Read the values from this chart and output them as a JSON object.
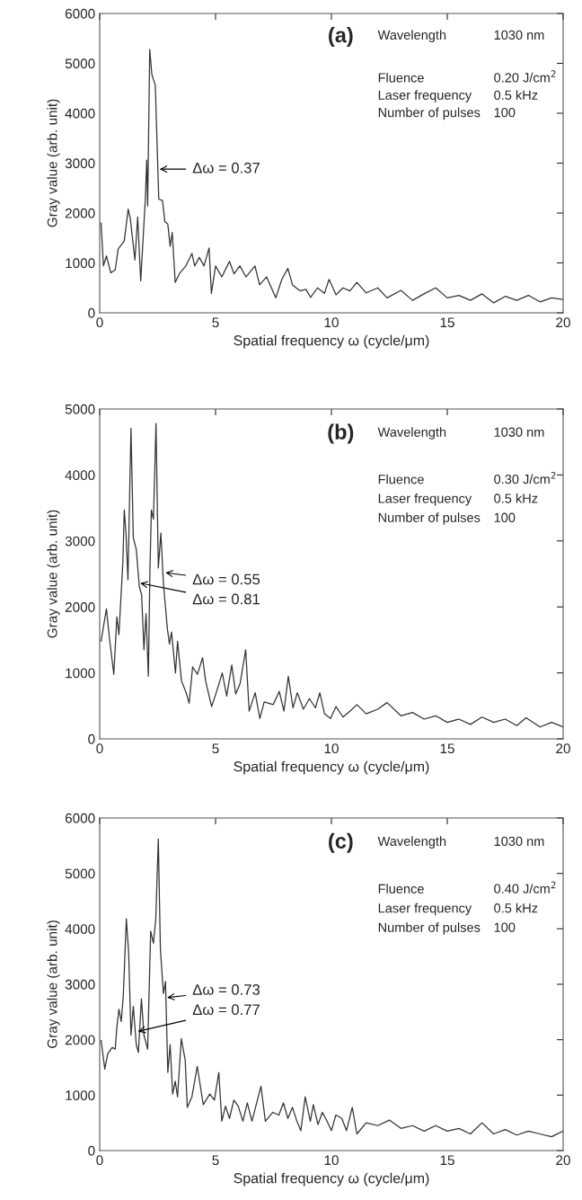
{
  "chart_data": [
    {
      "type": "line",
      "title": "(a)",
      "xlabel": "Spatial frequency ω (cycle/μm)",
      "ylabel": "Gray value (arb. unit)",
      "xlim": [
        0,
        20
      ],
      "xticks": [
        0,
        5,
        10,
        15,
        20
      ],
      "ylim": [
        0,
        6000
      ],
      "yticks": [
        0,
        1000,
        2000,
        3000,
        4000,
        5000,
        6000
      ],
      "grid": false,
      "legend": false,
      "series": [
        {
          "color": "#333333",
          "x": [
            0.06,
            0.16,
            0.29,
            0.48,
            0.67,
            0.8,
            1.06,
            1.23,
            1.32,
            1.52,
            1.64,
            1.77,
            1.97,
            2.03,
            2.07,
            2.16,
            2.25,
            2.4,
            2.55,
            2.71,
            2.81,
            2.94,
            3.04,
            3.13,
            3.26,
            3.46,
            3.72,
            3.98,
            4.1,
            4.3,
            4.5,
            4.72,
            4.82,
            5.0,
            5.27,
            5.6,
            5.8,
            6.05,
            6.31,
            6.7,
            6.9,
            7.2,
            7.6,
            7.86,
            8.12,
            8.32,
            8.64,
            8.9,
            9.1,
            9.4,
            9.7,
            9.9,
            10.2,
            10.5,
            10.8,
            11.1,
            11.5,
            12,
            12.4,
            13,
            13.5,
            14,
            14.5,
            15,
            15.5,
            16,
            16.5,
            17,
            17.5,
            18,
            18.5,
            19,
            19.5,
            20
          ],
          "values": [
            1800,
            940,
            1140,
            800,
            860,
            1280,
            1440,
            2080,
            1890,
            1060,
            1920,
            640,
            2280,
            3060,
            2140,
            5280,
            4780,
            4560,
            2280,
            2250,
            1830,
            1780,
            1330,
            1610,
            610,
            800,
            940,
            1190,
            940,
            1110,
            940,
            1300,
            390,
            940,
            720,
            1030,
            780,
            940,
            720,
            940,
            560,
            720,
            300,
            670,
            890,
            560,
            440,
            470,
            310,
            500,
            390,
            670,
            360,
            500,
            440,
            610,
            400,
            500,
            300,
            450,
            250,
            380,
            500,
            300,
            350,
            250,
            380,
            200,
            330,
            250,
            350,
            220,
            300,
            270
          ]
        }
      ],
      "annotations": [
        {
          "text": "Δω = 0.37",
          "x": 2.59,
          "y": 2880
        },
        "Wavelength",
        "1030 nm",
        "Fluence",
        "0.20 J/cm$^{2}$",
        "Laser frequency",
        "0.5 kHz",
        "Number of pulses",
        "100"
      ]
    },
    {
      "type": "line",
      "title": "(b)",
      "xlabel": "Spatial frequency ω (cycle/μm)",
      "ylabel": "Gray value (arb. unit)",
      "xlim": [
        0,
        20
      ],
      "xticks": [
        0,
        5,
        10,
        15,
        20
      ],
      "ylim": [
        0,
        5000
      ],
      "yticks": [
        0,
        1000,
        2000,
        3000,
        4000,
        5000
      ],
      "grid": false,
      "legend": false,
      "series": [
        {
          "color": "#333333",
          "x": [
            0.06,
            0.29,
            0.42,
            0.61,
            0.74,
            0.83,
            1.0,
            1.06,
            1.13,
            1.22,
            1.35,
            1.45,
            1.58,
            1.71,
            1.81,
            1.91,
            2.0,
            2.1,
            2.17,
            2.23,
            2.32,
            2.43,
            2.53,
            2.64,
            2.75,
            2.92,
            3.01,
            3.1,
            3.27,
            3.36,
            3.53,
            3.73,
            3.86,
            4.01,
            4.22,
            4.44,
            4.57,
            4.83,
            5.03,
            5.29,
            5.48,
            5.7,
            5.87,
            6.06,
            6.3,
            6.45,
            6.71,
            6.91,
            7.1,
            7.49,
            7.75,
            7.95,
            8.14,
            8.34,
            8.53,
            8.79,
            9.05,
            9.31,
            9.5,
            9.7,
            9.96,
            10.2,
            10.5,
            10.8,
            11.1,
            11.5,
            12,
            12.4,
            13,
            13.5,
            14,
            14.5,
            15,
            15.5,
            16,
            16.5,
            17,
            17.5,
            18,
            18.4,
            19,
            19.5,
            20
          ],
          "values": [
            1480,
            1970,
            1530,
            980,
            1850,
            1580,
            2680,
            3470,
            3140,
            2410,
            4710,
            3050,
            2870,
            2310,
            2180,
            1350,
            1900,
            950,
            2590,
            3470,
            3330,
            4780,
            2590,
            3120,
            2360,
            1670,
            1440,
            1620,
            1000,
            1480,
            880,
            700,
            540,
            1090,
            980,
            1230,
            880,
            490,
            700,
            1000,
            650,
            1120,
            680,
            840,
            1350,
            420,
            700,
            310,
            560,
            520,
            720,
            420,
            950,
            470,
            700,
            450,
            610,
            470,
            700,
            380,
            310,
            490,
            330,
            420,
            520,
            380,
            450,
            550,
            350,
            400,
            300,
            350,
            250,
            300,
            220,
            330,
            250,
            300,
            200,
            320,
            180,
            250,
            180
          ]
        }
      ],
      "annotations": [
        {
          "text": "Δω = 0.55",
          "x": 2.84,
          "y": 2520
        },
        {
          "text": "Δω = 0.81",
          "x": 1.75,
          "y": 2360
        },
        "Wavelength",
        "1030 nm",
        "Fluence",
        "0.30 J/cm$^{2}$",
        "Laser frequency",
        "0.5 kHz",
        "Number of pulses",
        "100"
      ]
    },
    {
      "type": "line",
      "title": "(c)",
      "xlabel": "Spatial frequency ω (cycle/μm)",
      "ylabel": "Gray value (arb. unit)",
      "xlim": [
        0,
        20
      ],
      "xticks": [
        0,
        5,
        10,
        15,
        20
      ],
      "ylim": [
        0,
        6000
      ],
      "yticks": [
        0,
        1000,
        2000,
        3000,
        4000,
        5000,
        6000
      ],
      "grid": false,
      "legend": false,
      "series": [
        {
          "color": "#333333",
          "x": [
            0.06,
            0.22,
            0.35,
            0.54,
            0.67,
            0.74,
            0.83,
            0.93,
            1.02,
            1.15,
            1.25,
            1.35,
            1.45,
            1.58,
            1.67,
            1.8,
            1.91,
            2.07,
            2.2,
            2.32,
            2.42,
            2.53,
            2.62,
            2.75,
            2.84,
            2.94,
            3.04,
            3.15,
            3.26,
            3.36,
            3.52,
            3.69,
            3.78,
            3.98,
            4.21,
            4.47,
            4.75,
            4.95,
            5.14,
            5.27,
            5.43,
            5.6,
            5.79,
            5.98,
            6.18,
            6.37,
            6.57,
            6.96,
            7.15,
            7.47,
            7.73,
            7.93,
            8.12,
            8.32,
            8.51,
            8.68,
            8.87,
            9.09,
            9.22,
            9.42,
            9.61,
            9.81,
            10.0,
            10.19,
            10.45,
            10.65,
            10.9,
            11.1,
            11.5,
            12,
            12.5,
            13,
            13.5,
            14,
            14.5,
            15,
            15.5,
            16,
            16.5,
            17,
            17.5,
            18,
            18.5,
            19,
            19.5,
            20
          ],
          "values": [
            1990,
            1470,
            1750,
            1860,
            1830,
            2220,
            2550,
            2330,
            2800,
            4180,
            3570,
            2080,
            2600,
            1910,
            1770,
            2740,
            2080,
            1830,
            3960,
            3740,
            4180,
            5620,
            3630,
            2830,
            3050,
            1410,
            1910,
            1020,
            1250,
            970,
            2020,
            1630,
            780,
            970,
            1520,
            830,
            1020,
            910,
            1410,
            530,
            800,
            580,
            910,
            800,
            530,
            860,
            530,
            1160,
            530,
            690,
            640,
            860,
            580,
            780,
            530,
            360,
            970,
            530,
            830,
            470,
            690,
            530,
            360,
            640,
            580,
            360,
            780,
            300,
            500,
            450,
            550,
            400,
            450,
            350,
            450,
            350,
            400,
            300,
            500,
            300,
            380,
            280,
            350,
            300,
            250,
            350
          ]
        }
      ],
      "annotations": [
        {
          "text": "Δω = 0.73",
          "x": 2.91,
          "y": 2760
        },
        {
          "text": "Δω = 0.77",
          "x": 1.65,
          "y": 2150
        },
        "Wavelength",
        "1030 nm",
        "Fluence",
        "0.40 J/cm$^{2}$",
        "Laser frequency",
        "0.5 kHz",
        "Number of pulses",
        "100"
      ]
    }
  ]
}
